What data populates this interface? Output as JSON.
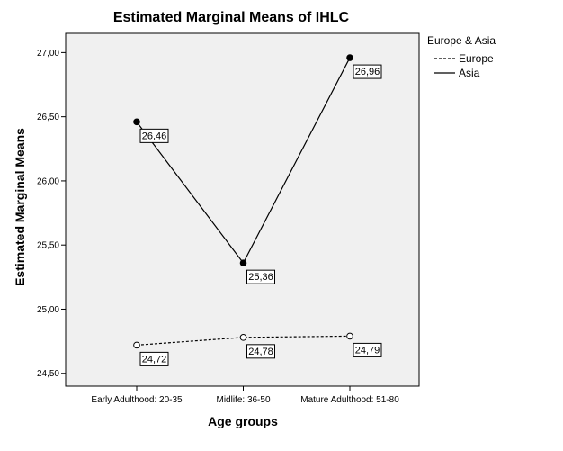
{
  "chart_data": {
    "type": "line",
    "title": "Estimated Marginal Means of IHLC",
    "xlabel": "Age groups",
    "ylabel": "Estimated Marginal Means",
    "categories": [
      "Early Adulthood: 20-35",
      "Midlife:  36-50",
      "Mature Adulthood: 51-80"
    ],
    "ylim": [
      24.4,
      27.15
    ],
    "yticks": [
      "24,50",
      "25,00",
      "25,50",
      "26,00",
      "26,50",
      "27,00"
    ],
    "ytick_values": [
      24.5,
      25.0,
      25.5,
      26.0,
      26.5,
      27.0
    ],
    "legend_title": "Europe & Asia",
    "legend_position": "right",
    "grid": false,
    "plot_background": "#f0f0f0",
    "series": [
      {
        "name": "Europe",
        "values": [
          24.72,
          24.78,
          24.79
        ],
        "labels": [
          "24,72",
          "24,78",
          "24,79"
        ],
        "line_style": "dashed",
        "marker": "open-circle",
        "color": "#000000"
      },
      {
        "name": "Asia",
        "values": [
          26.46,
          25.36,
          26.96
        ],
        "labels": [
          "26,46",
          "25,36",
          "26,96"
        ],
        "line_style": "solid",
        "marker": "filled-circle",
        "color": "#000000"
      }
    ]
  }
}
